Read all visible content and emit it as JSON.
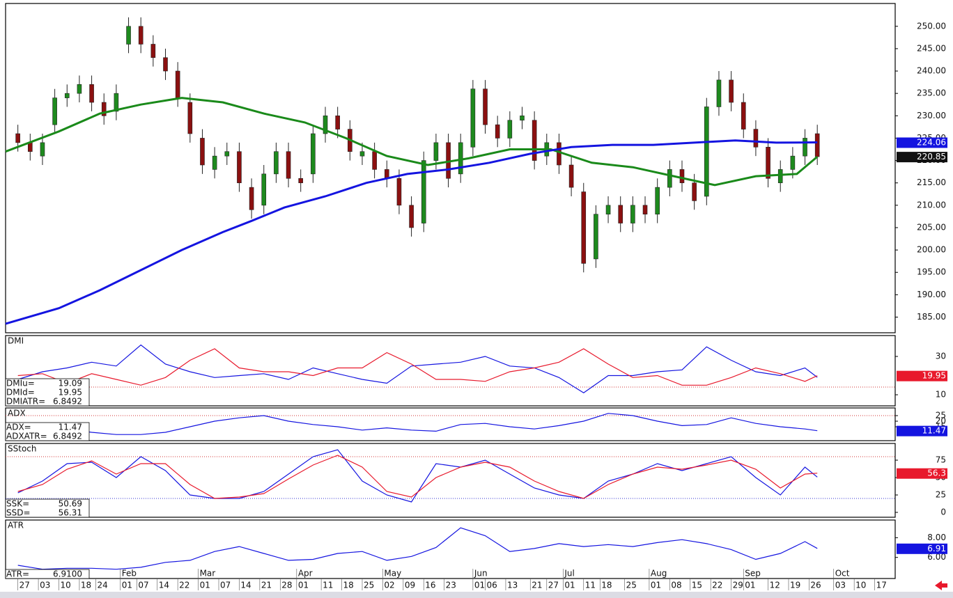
{
  "chart_data": [
    {
      "type": "candlestick",
      "xlim": [
        -3,
        214
      ],
      "ylim": [
        181.5,
        255.1
      ],
      "yticks": [
        {
          "value": 185,
          "label": "185.00"
        },
        {
          "value": 190,
          "label": "190.00"
        },
        {
          "value": 195,
          "label": "195.00"
        },
        {
          "value": 200,
          "label": "200.00"
        },
        {
          "value": 205,
          "label": "205.00"
        },
        {
          "value": 210,
          "label": "210.00"
        },
        {
          "value": 215,
          "label": "215.00"
        },
        {
          "value": 220,
          "label": "220.00"
        },
        {
          "value": 225,
          "label": "225.00"
        },
        {
          "value": 230,
          "label": "230.00"
        },
        {
          "value": 235,
          "label": "235.00"
        },
        {
          "value": 240,
          "label": "240.00"
        },
        {
          "value": 245,
          "label": "245.00"
        },
        {
          "value": 250,
          "label": "250.00"
        }
      ],
      "up_color": "#1e8a1e",
      "down_color": "#8b1010",
      "close_badge_color": "#111111",
      "x": [
        0,
        3,
        6,
        9,
        12,
        15,
        18,
        21,
        24,
        27,
        30,
        33,
        36,
        39,
        42,
        45,
        48,
        51,
        54,
        57,
        60,
        63,
        66,
        69,
        72,
        75,
        78,
        81,
        84,
        87,
        90,
        93,
        96,
        99,
        102,
        105,
        108,
        111,
        114,
        117,
        120,
        123,
        126,
        129,
        132,
        135,
        138,
        141,
        144,
        147,
        150,
        153,
        156,
        159,
        162,
        165,
        168,
        171,
        174,
        177,
        180,
        183,
        186,
        189,
        192,
        195
      ],
      "open": [
        226,
        224,
        221,
        228,
        234,
        235,
        237,
        233,
        231,
        246,
        250,
        246,
        243,
        240,
        233,
        225,
        218,
        221,
        222,
        214,
        210,
        217,
        222,
        216,
        217,
        226,
        230,
        227,
        221,
        222,
        218,
        216,
        210,
        206,
        220,
        224,
        217,
        223,
        236,
        228,
        225,
        229,
        229,
        221,
        224,
        219,
        213,
        198,
        208,
        210,
        206,
        210,
        208,
        214,
        218,
        215,
        212,
        232,
        238,
        233,
        227,
        223,
        215,
        218,
        221,
        226
      ],
      "high": [
        228,
        226,
        226,
        236,
        237,
        239,
        239,
        235,
        237,
        252,
        252,
        248,
        245,
        242,
        235,
        227,
        223,
        224,
        224,
        216,
        219,
        224,
        224,
        218,
        228,
        232,
        232,
        229,
        224,
        224,
        220,
        218,
        212,
        222,
        226,
        226,
        226,
        238,
        238,
        230,
        231,
        232,
        231,
        226,
        226,
        221,
        215,
        210,
        212,
        212,
        212,
        212,
        216,
        220,
        220,
        217,
        234,
        240,
        240,
        235,
        229,
        225,
        220,
        223,
        227,
        228
      ],
      "low": [
        222,
        220,
        219,
        226,
        232,
        233,
        231,
        228,
        229,
        244,
        244,
        241,
        238,
        232,
        224,
        217,
        216,
        219,
        213,
        207,
        208,
        215,
        214,
        213,
        215,
        224,
        225,
        220,
        219,
        216,
        214,
        208,
        203,
        204,
        218,
        214,
        215,
        221,
        226,
        223,
        223,
        227,
        218,
        219,
        217,
        212,
        195,
        196,
        206,
        204,
        204,
        206,
        206,
        212,
        213,
        209,
        210,
        230,
        231,
        225,
        221,
        214,
        213,
        216,
        219,
        219
      ],
      "close": [
        224,
        222,
        224,
        234,
        235,
        237,
        233,
        230,
        235,
        250,
        246,
        243,
        240,
        234,
        226,
        219,
        221,
        222,
        215,
        209,
        217,
        222,
        216,
        215,
        226,
        230,
        227,
        222,
        222,
        218,
        216,
        210,
        205,
        220,
        224,
        216,
        224,
        236,
        228,
        225,
        229,
        230,
        220,
        224,
        219,
        214,
        197,
        208,
        210,
        206,
        210,
        208,
        214,
        218,
        215,
        211,
        232,
        238,
        233,
        227,
        223,
        216,
        218,
        221,
        225,
        220.85
      ],
      "series": [
        {
          "color": "#1a8a1a",
          "badge": false,
          "x": [
            -3,
            10,
            20,
            30,
            40,
            50,
            60,
            70,
            80,
            90,
            100,
            110,
            120,
            130,
            140,
            150,
            160,
            170,
            180,
            190,
            195
          ],
          "values": [
            222,
            226.5,
            230.5,
            232.5,
            234,
            233,
            230.5,
            228.5,
            225,
            221,
            219,
            220.5,
            222.5,
            222.5,
            219.5,
            218.5,
            216.5,
            214.5,
            216.5,
            217,
            220.85
          ]
        },
        {
          "color": "#1414e0",
          "badge": true,
          "x": [
            -3,
            10,
            20,
            30,
            40,
            50,
            57,
            65,
            75,
            85,
            95,
            105,
            115,
            125,
            135,
            145,
            155,
            165,
            175,
            185,
            195
          ],
          "values": [
            183.5,
            187,
            191,
            195.5,
            200,
            204,
            206.5,
            209.5,
            212,
            215,
            217,
            218,
            219.5,
            221.5,
            223,
            223.5,
            223.5,
            224,
            224.5,
            224,
            224.06
          ]
        }
      ]
    },
    {
      "type": "line",
      "title": "DMI",
      "xlim": [
        -3,
        214
      ],
      "ylim": [
        4.2,
        40.9
      ],
      "yticks": [
        10,
        30
      ],
      "ref_lines": [
        14
      ],
      "x": [
        0,
        6,
        12,
        18,
        24,
        30,
        36,
        42,
        48,
        54,
        60,
        66,
        72,
        78,
        84,
        90,
        96,
        102,
        108,
        114,
        120,
        126,
        132,
        138,
        144,
        150,
        156,
        162,
        168,
        174,
        180,
        186,
        192,
        195
      ],
      "series": [
        {
          "color": "#1414e0",
          "badge": false,
          "values": [
            18,
            22,
            24,
            27,
            25,
            36,
            26,
            22,
            19,
            20,
            21,
            18,
            24,
            21,
            18,
            16,
            25,
            26,
            27,
            30,
            25,
            24,
            19,
            11,
            20,
            20,
            22,
            23,
            35,
            28,
            22,
            20,
            24,
            19.09
          ]
        },
        {
          "color": "#e8192c",
          "badge": true,
          "values": [
            20,
            21,
            16,
            21,
            18,
            15,
            19,
            28,
            34,
            24,
            22,
            22,
            20,
            24,
            24,
            32,
            26,
            18,
            18,
            17,
            22,
            24,
            27,
            34,
            26,
            19,
            20,
            15,
            15,
            19,
            24,
            21,
            17,
            19.95
          ]
        }
      ],
      "readouts": [
        {
          "label": "DMIu=",
          "value": 19.09
        },
        {
          "label": "DMId=",
          "value": 19.95
        },
        {
          "label": "DMIATR=",
          "value": 6.8492
        }
      ]
    },
    {
      "type": "line",
      "title": "ADX",
      "xlim": [
        -3,
        214
      ],
      "ylim": [
        2.5,
        31.9
      ],
      "yticks": [
        15,
        20,
        25
      ],
      "ref_lines": [
        25
      ],
      "x": [
        0,
        6,
        12,
        18,
        24,
        30,
        36,
        42,
        48,
        54,
        60,
        66,
        72,
        78,
        84,
        90,
        96,
        102,
        108,
        114,
        120,
        126,
        132,
        138,
        144,
        150,
        156,
        162,
        168,
        174,
        180,
        186,
        192,
        195
      ],
      "series": [
        {
          "color": "#1414e0",
          "badge": true,
          "values": [
            15,
            13,
            13,
            10,
            8,
            8,
            10,
            15,
            20,
            23,
            25,
            20,
            17,
            15,
            12,
            14,
            12,
            11,
            17,
            18,
            15,
            13,
            16,
            20,
            27,
            25,
            20,
            16,
            17,
            23,
            18,
            15,
            13,
            11.47
          ]
        }
      ],
      "readouts": [
        {
          "label": "ADX=",
          "value": 11.47
        },
        {
          "label": "ADXATR=",
          "value": 6.8492
        }
      ]
    },
    {
      "type": "line",
      "title": "SStoch",
      "xlim": [
        -3,
        214
      ],
      "ylim": [
        -7,
        99
      ],
      "yticks": [
        0,
        25,
        50,
        75
      ],
      "ref_lines": [
        80,
        20
      ],
      "x": [
        0,
        6,
        12,
        18,
        24,
        30,
        36,
        42,
        48,
        54,
        60,
        66,
        72,
        78,
        84,
        90,
        96,
        102,
        108,
        114,
        120,
        126,
        132,
        138,
        144,
        150,
        156,
        162,
        168,
        174,
        180,
        186,
        192,
        195
      ],
      "series": [
        {
          "color": "#1414e0",
          "badge": false,
          "values": [
            28,
            45,
            70,
            72,
            50,
            80,
            60,
            25,
            20,
            20,
            30,
            55,
            80,
            90,
            45,
            25,
            15,
            70,
            65,
            75,
            55,
            35,
            25,
            20,
            45,
            55,
            70,
            60,
            70,
            80,
            50,
            25,
            65,
            50.69
          ]
        },
        {
          "color": "#e8192c",
          "badge": true,
          "last_label": "56.3",
          "values": [
            30,
            40,
            62,
            74,
            55,
            70,
            70,
            40,
            20,
            22,
            27,
            48,
            68,
            82,
            65,
            30,
            22,
            50,
            65,
            72,
            65,
            45,
            30,
            20,
            40,
            55,
            65,
            62,
            68,
            75,
            62,
            35,
            55,
            56.31
          ]
        }
      ],
      "readouts": [
        {
          "label": "SSK=",
          "value": 50.69
        },
        {
          "label": "SSD=",
          "value": 56.31
        }
      ]
    },
    {
      "type": "line",
      "title": "ATR",
      "xlim": [
        -3,
        214
      ],
      "ylim": [
        3.86,
        9.79
      ],
      "yticks": [
        {
          "value": 6,
          "label": "6.00"
        },
        {
          "value": 8,
          "label": "8.00"
        }
      ],
      "x": [
        0,
        6,
        12,
        18,
        24,
        30,
        36,
        42,
        48,
        54,
        60,
        66,
        72,
        78,
        84,
        90,
        96,
        102,
        108,
        114,
        120,
        126,
        132,
        138,
        144,
        150,
        156,
        162,
        168,
        174,
        180,
        186,
        192,
        195
      ],
      "series": [
        {
          "color": "#1414e0",
          "badge": true,
          "values": [
            5.2,
            4.8,
            4.9,
            4.9,
            4.8,
            5.0,
            5.5,
            5.7,
            6.6,
            7.1,
            6.4,
            5.7,
            5.8,
            6.4,
            6.6,
            5.7,
            6.1,
            7.0,
            9.0,
            8.2,
            6.6,
            6.9,
            7.4,
            7.1,
            7.3,
            7.1,
            7.5,
            7.8,
            7.4,
            6.8,
            5.8,
            6.4,
            7.6,
            6.91
          ]
        }
      ],
      "readouts": [
        {
          "label": "ATR=",
          "value": 6.91,
          "value_label": "6.9100"
        }
      ],
      "xticks": [
        {
          "value": 0,
          "label": "27"
        },
        {
          "value": 5,
          "label": "03"
        },
        {
          "value": 10,
          "label": "10"
        },
        {
          "value": 15,
          "label": "18"
        },
        {
          "value": 19,
          "label": "24"
        },
        {
          "value": 25,
          "label": "01"
        },
        {
          "value": 29,
          "label": "07"
        },
        {
          "value": 34,
          "label": "14"
        },
        {
          "value": 39,
          "label": "22"
        },
        {
          "value": 44,
          "label": "01"
        },
        {
          "value": 49,
          "label": "07"
        },
        {
          "value": 54,
          "label": "14"
        },
        {
          "value": 59,
          "label": "21"
        },
        {
          "value": 64,
          "label": "28"
        },
        {
          "value": 68,
          "label": "01"
        },
        {
          "value": 74,
          "label": "11"
        },
        {
          "value": 79,
          "label": "18"
        },
        {
          "value": 84,
          "label": "25"
        },
        {
          "value": 89,
          "label": "02"
        },
        {
          "value": 94,
          "label": "09"
        },
        {
          "value": 99,
          "label": "16"
        },
        {
          "value": 104,
          "label": "23"
        },
        {
          "value": 111,
          "label": "01"
        },
        {
          "value": 114,
          "label": "06"
        },
        {
          "value": 119,
          "label": "13"
        },
        {
          "value": 125,
          "label": "21"
        },
        {
          "value": 129,
          "label": "27"
        },
        {
          "value": 133,
          "label": "01"
        },
        {
          "value": 138,
          "label": "11"
        },
        {
          "value": 142,
          "label": "18"
        },
        {
          "value": 148,
          "label": "25"
        },
        {
          "value": 154,
          "label": "01"
        },
        {
          "value": 159,
          "label": "08"
        },
        {
          "value": 164,
          "label": "15"
        },
        {
          "value": 169,
          "label": "22"
        },
        {
          "value": 174,
          "label": "29"
        },
        {
          "value": 177,
          "label": "01"
        },
        {
          "value": 183,
          "label": "12"
        },
        {
          "value": 188,
          "label": "19"
        },
        {
          "value": 193,
          "label": "26"
        },
        {
          "value": 199,
          "label": "03"
        },
        {
          "value": 204,
          "label": "10"
        },
        {
          "value": 209,
          "label": "17"
        }
      ],
      "xticks_months": [
        {
          "value": 25,
          "label": "Feb"
        },
        {
          "value": 44,
          "label": "Mar"
        },
        {
          "value": 68,
          "label": "Apr"
        },
        {
          "value": 89,
          "label": "May"
        },
        {
          "value": 111,
          "label": "Jun"
        },
        {
          "value": 133,
          "label": "Jul"
        },
        {
          "value": 154,
          "label": "Aug"
        },
        {
          "value": 177,
          "label": "Sep"
        },
        {
          "value": 199,
          "label": "Oct"
        }
      ]
    }
  ]
}
